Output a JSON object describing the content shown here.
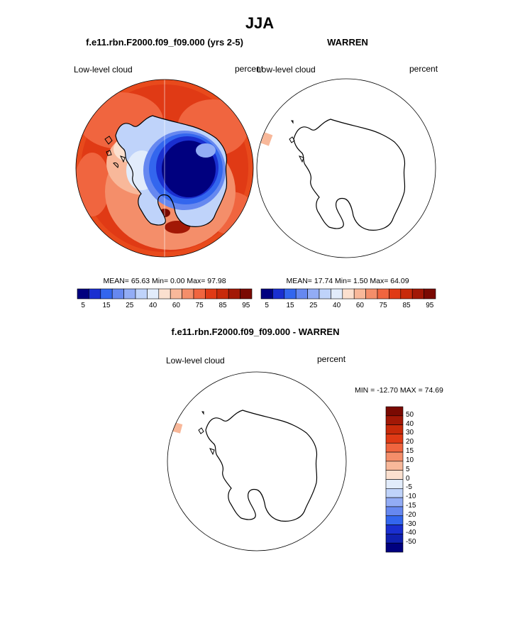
{
  "figure": {
    "title": "JJA",
    "panel1": {
      "case_title": "f.e11.rbn.F2000.f09_f09.000 (yrs 2-5)",
      "left_label": "Low-level cloud",
      "right_label": "percent",
      "stats": "MEAN= 65.63  Min=  0.00  Max= 97.98",
      "colorbar_ticks": [
        "5",
        "15",
        "25",
        "40",
        "60",
        "75",
        "85",
        "95"
      ]
    },
    "panel2": {
      "case_title": "WARREN",
      "left_label": "Low-level cloud",
      "right_label": "percent",
      "stats": "MEAN= 17.74  Min=  1.50  Max= 64.09",
      "colorbar_ticks": [
        "5",
        "15",
        "25",
        "40",
        "60",
        "75",
        "85",
        "95"
      ]
    },
    "panel3": {
      "case_title": "f.e11.rbn.F2000.f09_f09.000 - WARREN",
      "left_label": "Low-level cloud",
      "right_label": "percent",
      "stats": "MIN = -12.70 MAX =  74.69",
      "colorbar_ticks": [
        "50",
        "40",
        "30",
        "20",
        "15",
        "10",
        "5",
        "0",
        "-5",
        "-10",
        "-15",
        "-20",
        "-30",
        "-40",
        "-50"
      ]
    }
  },
  "colors": {
    "abs_scale": [
      "#00007f",
      "#1a2fd0",
      "#3366ee",
      "#6688f0",
      "#92acf5",
      "#bfd3fa",
      "#e2ecfb",
      "#fbe0cf",
      "#f8b89a",
      "#f48e6a",
      "#f0653f",
      "#e03a15",
      "#c82a0a",
      "#a21806",
      "#7a0a02"
    ],
    "diff_scale": [
      "#7a0a02",
      "#a21806",
      "#c82a0a",
      "#e03a15",
      "#f0653f",
      "#f48e6a",
      "#f8b89a",
      "#fbe0cf",
      "#e2ecfb",
      "#bfd3fa",
      "#92acf5",
      "#6688f0",
      "#3366ee",
      "#1a2fd0",
      "#1020b0",
      "#00007f"
    ]
  }
}
